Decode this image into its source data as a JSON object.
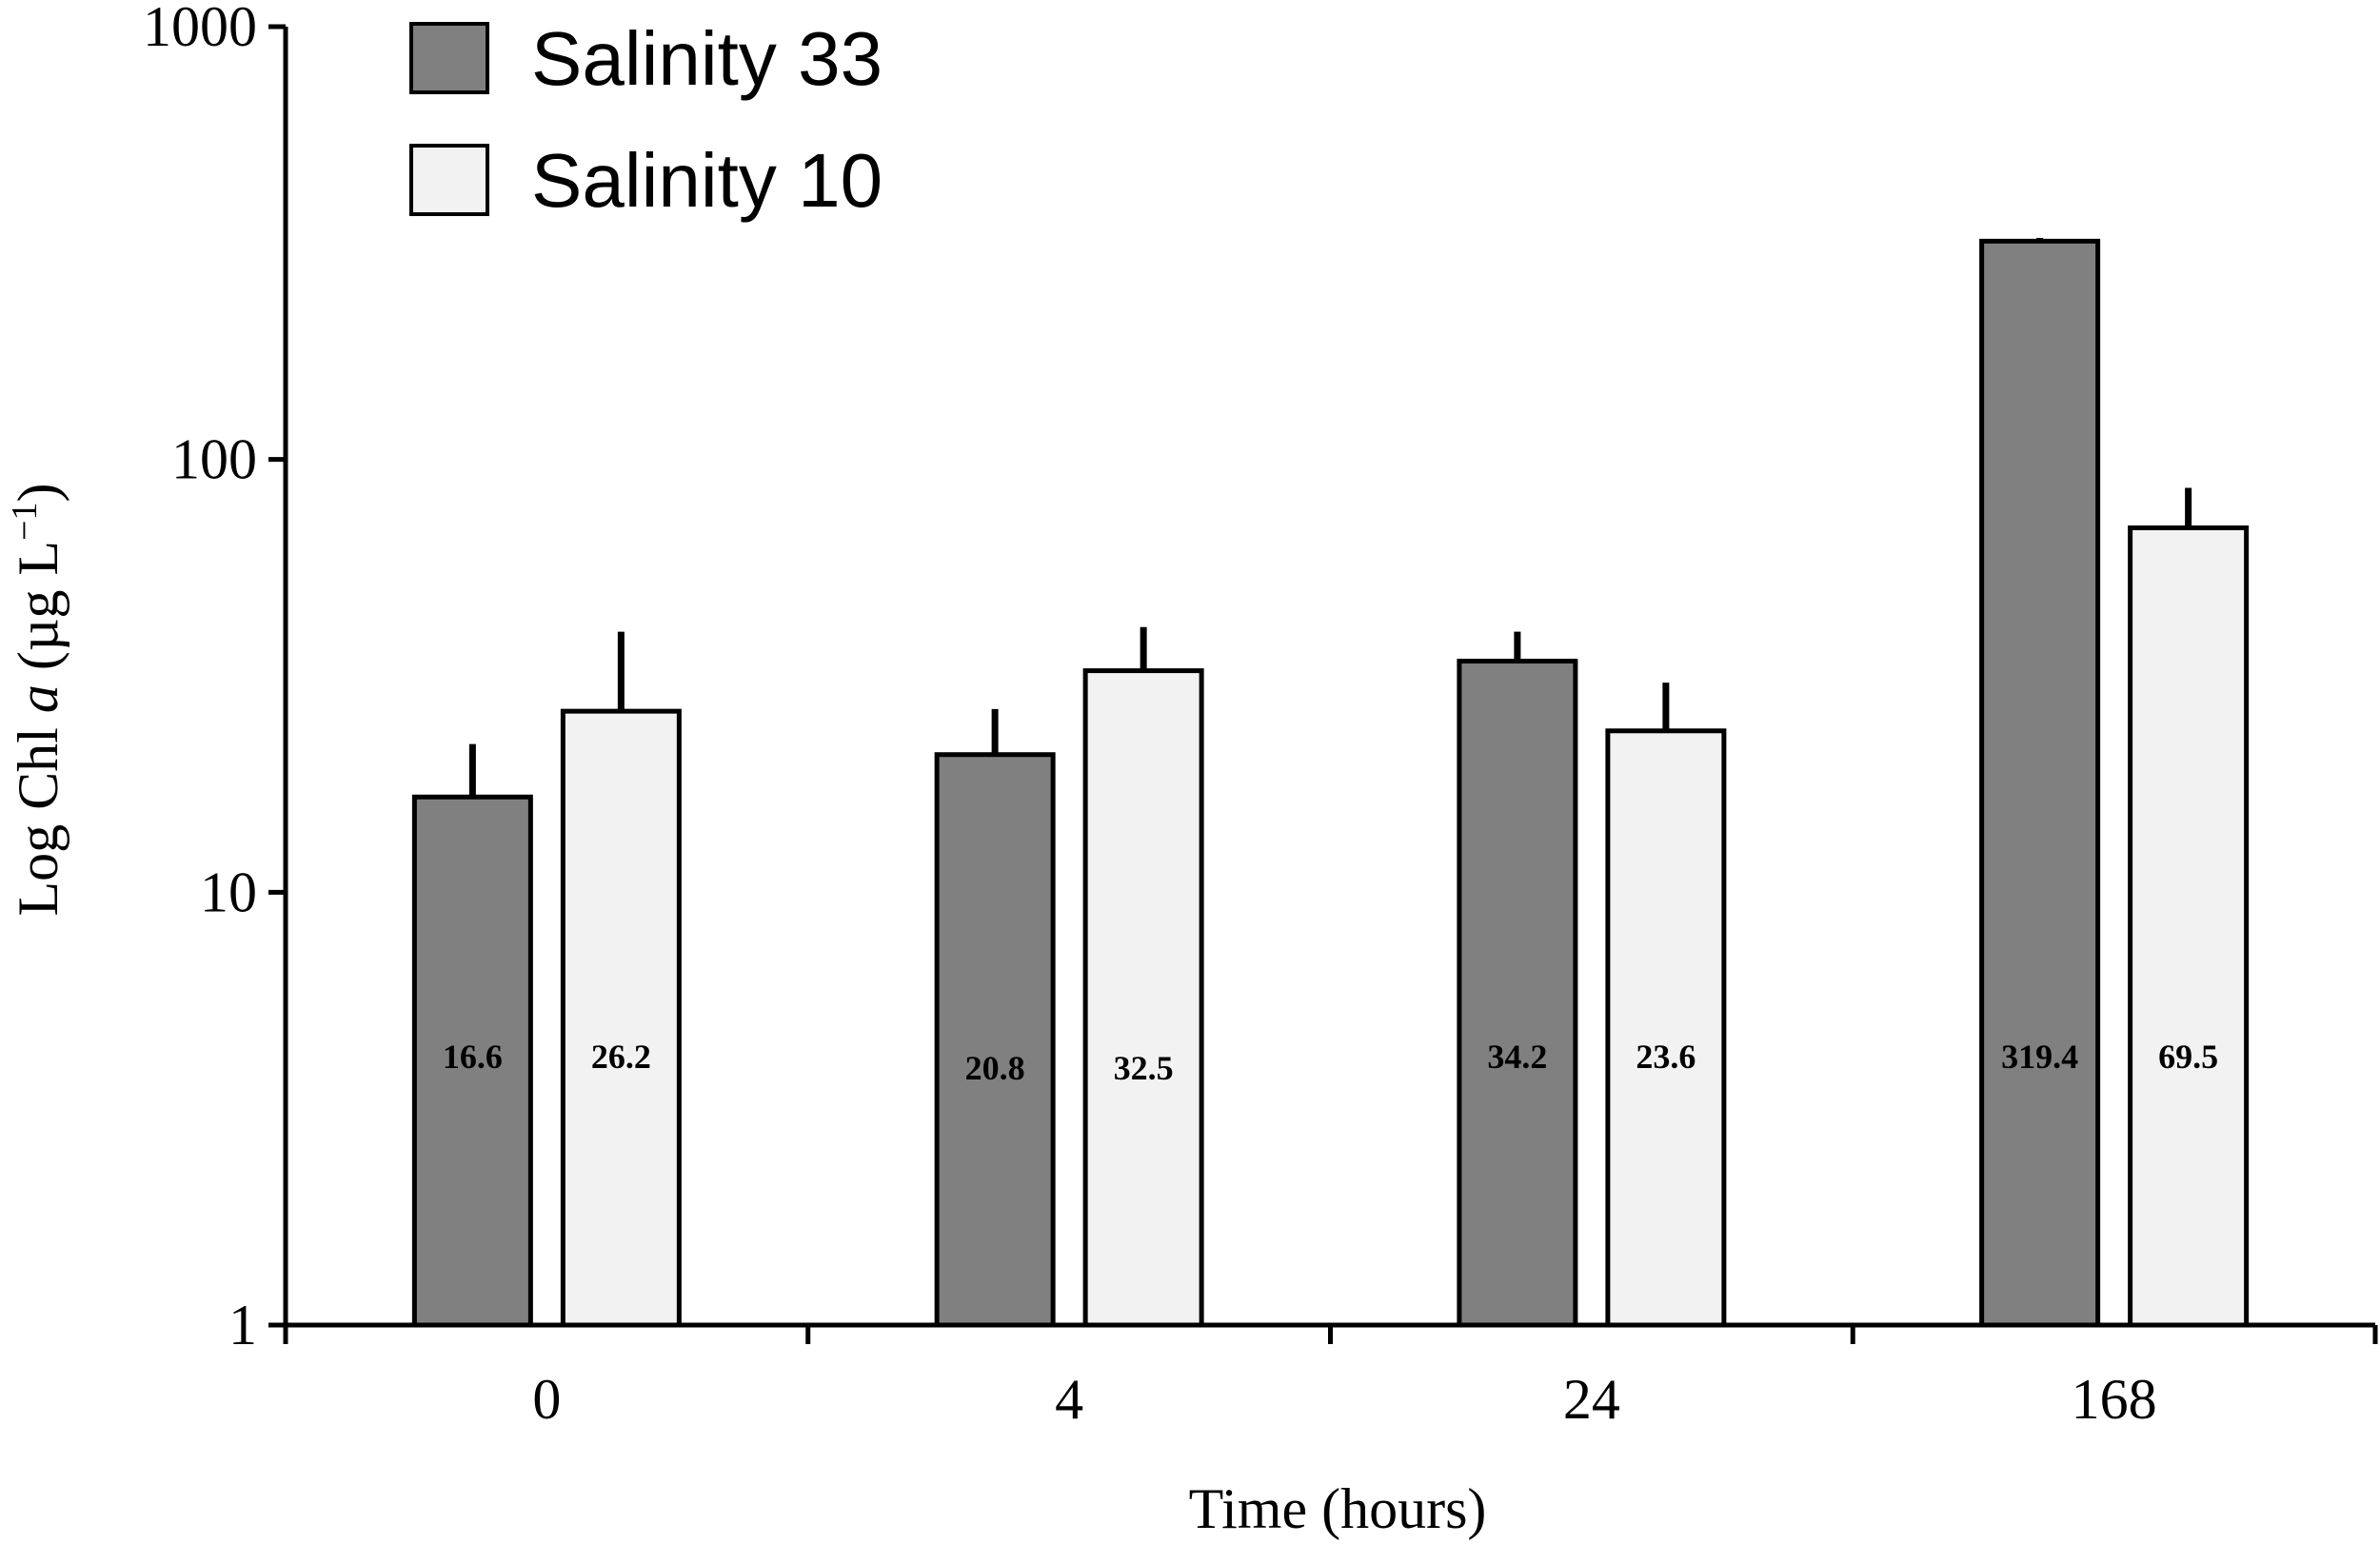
{
  "chart_data": {
    "type": "bar",
    "title": "",
    "xlabel": "Time (hours)",
    "ylabel": {
      "prefix": "Log  Chl ",
      "italic": "a",
      "units": " (µg L",
      "sup": "−1",
      "close": ")"
    },
    "yscale": "log",
    "ylim": [
      1,
      1000
    ],
    "yticks": [
      1,
      10,
      100,
      1000
    ],
    "ytick_labels": [
      "1",
      "10",
      "100",
      "1000"
    ],
    "categories": [
      "0",
      "4",
      "24",
      "168"
    ],
    "legend_position": "top-left",
    "series": [
      {
        "name": "Salinity 33",
        "color": "#808080",
        "values": [
          16.6,
          20.8,
          34.2,
          319.4
        ],
        "error_upper": [
          22,
          26.5,
          40,
          325
        ],
        "labels": [
          "16.6",
          "20.8",
          "34.2",
          "319.4"
        ]
      },
      {
        "name": "Salinity 10",
        "color": "#f2f2f2",
        "values": [
          26.2,
          32.5,
          23.6,
          69.5
        ],
        "error_upper": [
          40,
          41,
          30.5,
          86
        ],
        "labels": [
          "26.2",
          "32.5",
          "23.6",
          "69.5"
        ]
      }
    ]
  }
}
